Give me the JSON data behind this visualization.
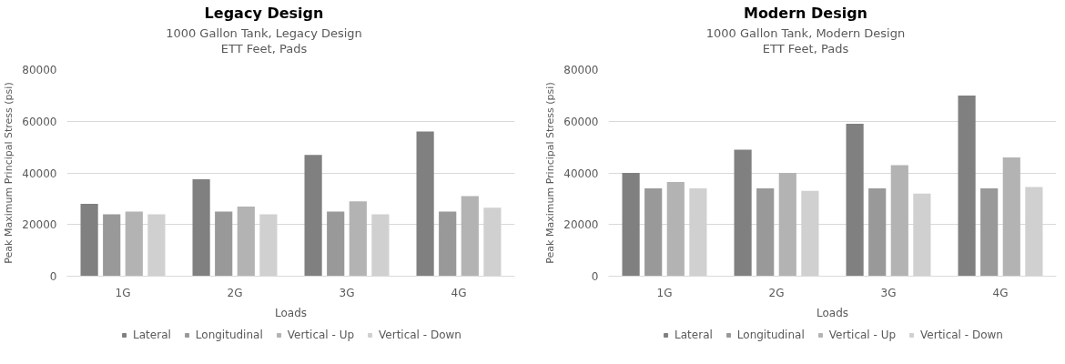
{
  "chart_data": [
    {
      "type": "bar",
      "title": "Legacy Design",
      "subtitle": "1000 Gallon Tank, Legacy Design\nETT Feet, Pads",
      "xlabel": "Loads",
      "ylabel": "Peak Maximum Principal Stress (psi)",
      "categories": [
        "1G",
        "2G",
        "3G",
        "4G"
      ],
      "series": [
        {
          "name": "Lateral",
          "color": "#808080",
          "values": [
            28000,
            37500,
            47000,
            56000
          ]
        },
        {
          "name": "Longitudinal",
          "color": "#999999",
          "values": [
            24000,
            25000,
            25000,
            25000
          ]
        },
        {
          "name": "Vertical - Up",
          "color": "#b3b3b3",
          "values": [
            25000,
            27000,
            29000,
            31000
          ]
        },
        {
          "name": "Vertical - Down",
          "color": "#d0d0d0",
          "values": [
            24000,
            24000,
            24000,
            26500
          ]
        }
      ],
      "ylim": [
        0,
        80000
      ],
      "yticks": [
        0,
        20000,
        40000,
        60000,
        80000
      ],
      "grid": "y",
      "legend": "bottom"
    },
    {
      "type": "bar",
      "title": "Modern Design",
      "subtitle": "1000 Gallon Tank, Modern Design\nETT Feet, Pads",
      "xlabel": "Loads",
      "ylabel": "Peak Maximum Principal Stress (psi)",
      "categories": [
        "1G",
        "2G",
        "3G",
        "4G"
      ],
      "series": [
        {
          "name": "Lateral",
          "color": "#808080",
          "values": [
            40000,
            49000,
            59000,
            70000
          ]
        },
        {
          "name": "Longitudinal",
          "color": "#999999",
          "values": [
            34000,
            34000,
            34000,
            34000
          ]
        },
        {
          "name": "Vertical - Up",
          "color": "#b3b3b3",
          "values": [
            36500,
            40000,
            43000,
            46000
          ]
        },
        {
          "name": "Vertical - Down",
          "color": "#d0d0d0",
          "values": [
            34000,
            33000,
            32000,
            34500
          ]
        }
      ],
      "ylim": [
        0,
        80000
      ],
      "yticks": [
        0,
        20000,
        40000,
        60000,
        80000
      ],
      "grid": "y",
      "legend": "bottom"
    }
  ]
}
